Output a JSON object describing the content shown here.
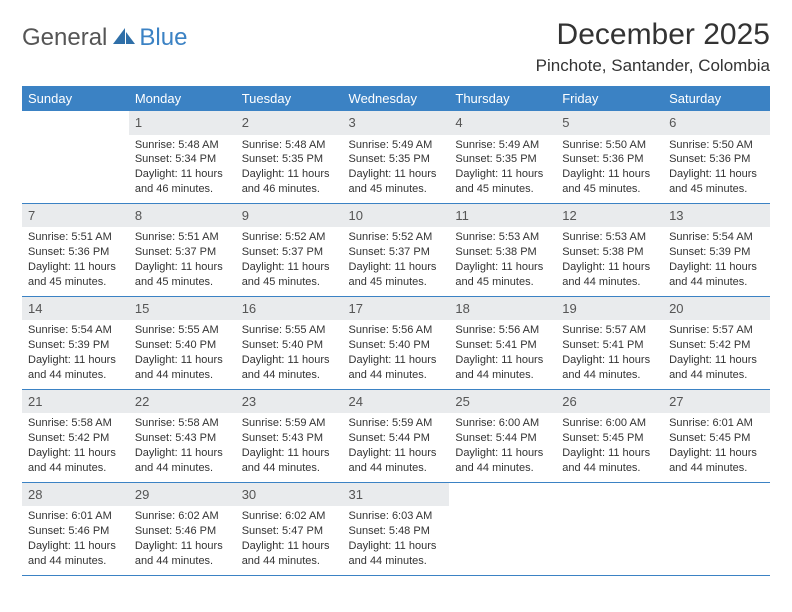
{
  "brand": {
    "general": "General",
    "blue": "Blue"
  },
  "header": {
    "month_title": "December 2025",
    "location": "Pinchote, Santander, Colombia"
  },
  "theme": {
    "header_bg": "#3b82c4",
    "header_fg": "#ffffff",
    "daynum_bg": "#e9ebed",
    "row_border": "#3b82c4",
    "text_color": "#333333"
  },
  "weekdays": [
    "Sunday",
    "Monday",
    "Tuesday",
    "Wednesday",
    "Thursday",
    "Friday",
    "Saturday"
  ],
  "weeks": [
    [
      {
        "day": "",
        "sunrise": "",
        "sunset": "",
        "daylight": "",
        "empty": true
      },
      {
        "day": "1",
        "sunrise": "Sunrise: 5:48 AM",
        "sunset": "Sunset: 5:34 PM",
        "daylight": "Daylight: 11 hours and 46 minutes."
      },
      {
        "day": "2",
        "sunrise": "Sunrise: 5:48 AM",
        "sunset": "Sunset: 5:35 PM",
        "daylight": "Daylight: 11 hours and 46 minutes."
      },
      {
        "day": "3",
        "sunrise": "Sunrise: 5:49 AM",
        "sunset": "Sunset: 5:35 PM",
        "daylight": "Daylight: 11 hours and 45 minutes."
      },
      {
        "day": "4",
        "sunrise": "Sunrise: 5:49 AM",
        "sunset": "Sunset: 5:35 PM",
        "daylight": "Daylight: 11 hours and 45 minutes."
      },
      {
        "day": "5",
        "sunrise": "Sunrise: 5:50 AM",
        "sunset": "Sunset: 5:36 PM",
        "daylight": "Daylight: 11 hours and 45 minutes."
      },
      {
        "day": "6",
        "sunrise": "Sunrise: 5:50 AM",
        "sunset": "Sunset: 5:36 PM",
        "daylight": "Daylight: 11 hours and 45 minutes."
      }
    ],
    [
      {
        "day": "7",
        "sunrise": "Sunrise: 5:51 AM",
        "sunset": "Sunset: 5:36 PM",
        "daylight": "Daylight: 11 hours and 45 minutes."
      },
      {
        "day": "8",
        "sunrise": "Sunrise: 5:51 AM",
        "sunset": "Sunset: 5:37 PM",
        "daylight": "Daylight: 11 hours and 45 minutes."
      },
      {
        "day": "9",
        "sunrise": "Sunrise: 5:52 AM",
        "sunset": "Sunset: 5:37 PM",
        "daylight": "Daylight: 11 hours and 45 minutes."
      },
      {
        "day": "10",
        "sunrise": "Sunrise: 5:52 AM",
        "sunset": "Sunset: 5:37 PM",
        "daylight": "Daylight: 11 hours and 45 minutes."
      },
      {
        "day": "11",
        "sunrise": "Sunrise: 5:53 AM",
        "sunset": "Sunset: 5:38 PM",
        "daylight": "Daylight: 11 hours and 45 minutes."
      },
      {
        "day": "12",
        "sunrise": "Sunrise: 5:53 AM",
        "sunset": "Sunset: 5:38 PM",
        "daylight": "Daylight: 11 hours and 44 minutes."
      },
      {
        "day": "13",
        "sunrise": "Sunrise: 5:54 AM",
        "sunset": "Sunset: 5:39 PM",
        "daylight": "Daylight: 11 hours and 44 minutes."
      }
    ],
    [
      {
        "day": "14",
        "sunrise": "Sunrise: 5:54 AM",
        "sunset": "Sunset: 5:39 PM",
        "daylight": "Daylight: 11 hours and 44 minutes."
      },
      {
        "day": "15",
        "sunrise": "Sunrise: 5:55 AM",
        "sunset": "Sunset: 5:40 PM",
        "daylight": "Daylight: 11 hours and 44 minutes."
      },
      {
        "day": "16",
        "sunrise": "Sunrise: 5:55 AM",
        "sunset": "Sunset: 5:40 PM",
        "daylight": "Daylight: 11 hours and 44 minutes."
      },
      {
        "day": "17",
        "sunrise": "Sunrise: 5:56 AM",
        "sunset": "Sunset: 5:40 PM",
        "daylight": "Daylight: 11 hours and 44 minutes."
      },
      {
        "day": "18",
        "sunrise": "Sunrise: 5:56 AM",
        "sunset": "Sunset: 5:41 PM",
        "daylight": "Daylight: 11 hours and 44 minutes."
      },
      {
        "day": "19",
        "sunrise": "Sunrise: 5:57 AM",
        "sunset": "Sunset: 5:41 PM",
        "daylight": "Daylight: 11 hours and 44 minutes."
      },
      {
        "day": "20",
        "sunrise": "Sunrise: 5:57 AM",
        "sunset": "Sunset: 5:42 PM",
        "daylight": "Daylight: 11 hours and 44 minutes."
      }
    ],
    [
      {
        "day": "21",
        "sunrise": "Sunrise: 5:58 AM",
        "sunset": "Sunset: 5:42 PM",
        "daylight": "Daylight: 11 hours and 44 minutes."
      },
      {
        "day": "22",
        "sunrise": "Sunrise: 5:58 AM",
        "sunset": "Sunset: 5:43 PM",
        "daylight": "Daylight: 11 hours and 44 minutes."
      },
      {
        "day": "23",
        "sunrise": "Sunrise: 5:59 AM",
        "sunset": "Sunset: 5:43 PM",
        "daylight": "Daylight: 11 hours and 44 minutes."
      },
      {
        "day": "24",
        "sunrise": "Sunrise: 5:59 AM",
        "sunset": "Sunset: 5:44 PM",
        "daylight": "Daylight: 11 hours and 44 minutes."
      },
      {
        "day": "25",
        "sunrise": "Sunrise: 6:00 AM",
        "sunset": "Sunset: 5:44 PM",
        "daylight": "Daylight: 11 hours and 44 minutes."
      },
      {
        "day": "26",
        "sunrise": "Sunrise: 6:00 AM",
        "sunset": "Sunset: 5:45 PM",
        "daylight": "Daylight: 11 hours and 44 minutes."
      },
      {
        "day": "27",
        "sunrise": "Sunrise: 6:01 AM",
        "sunset": "Sunset: 5:45 PM",
        "daylight": "Daylight: 11 hours and 44 minutes."
      }
    ],
    [
      {
        "day": "28",
        "sunrise": "Sunrise: 6:01 AM",
        "sunset": "Sunset: 5:46 PM",
        "daylight": "Daylight: 11 hours and 44 minutes."
      },
      {
        "day": "29",
        "sunrise": "Sunrise: 6:02 AM",
        "sunset": "Sunset: 5:46 PM",
        "daylight": "Daylight: 11 hours and 44 minutes."
      },
      {
        "day": "30",
        "sunrise": "Sunrise: 6:02 AM",
        "sunset": "Sunset: 5:47 PM",
        "daylight": "Daylight: 11 hours and 44 minutes."
      },
      {
        "day": "31",
        "sunrise": "Sunrise: 6:03 AM",
        "sunset": "Sunset: 5:48 PM",
        "daylight": "Daylight: 11 hours and 44 minutes."
      },
      {
        "day": "",
        "sunrise": "",
        "sunset": "",
        "daylight": "",
        "empty": true
      },
      {
        "day": "",
        "sunrise": "",
        "sunset": "",
        "daylight": "",
        "empty": true
      },
      {
        "day": "",
        "sunrise": "",
        "sunset": "",
        "daylight": "",
        "empty": true
      }
    ]
  ]
}
